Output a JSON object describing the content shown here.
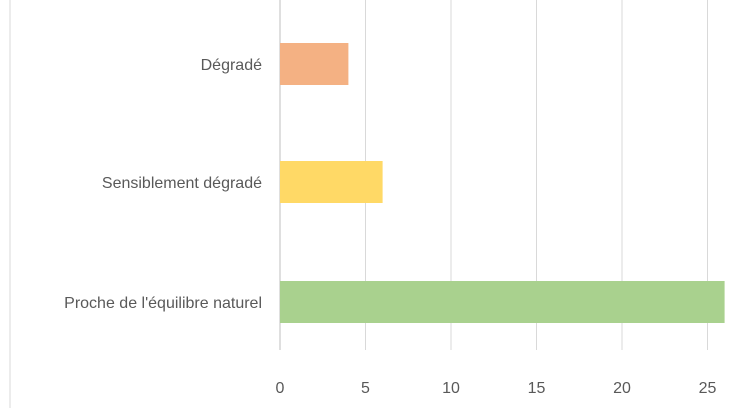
{
  "chart_data": {
    "type": "bar",
    "orientation": "horizontal",
    "categories": [
      "Dégradé",
      "Sensiblement dégradé",
      "Proche de l'équilibre naturel"
    ],
    "values": [
      4,
      6,
      26
    ],
    "colors": [
      "#F4B183",
      "#FFD966",
      "#A9D18E"
    ],
    "x_ticks": [
      "0",
      "5",
      "10",
      "15",
      "20",
      "25"
    ],
    "xlim": [
      0,
      26
    ],
    "grid": "vertical",
    "title": "",
    "xlabel": "",
    "ylabel": ""
  }
}
